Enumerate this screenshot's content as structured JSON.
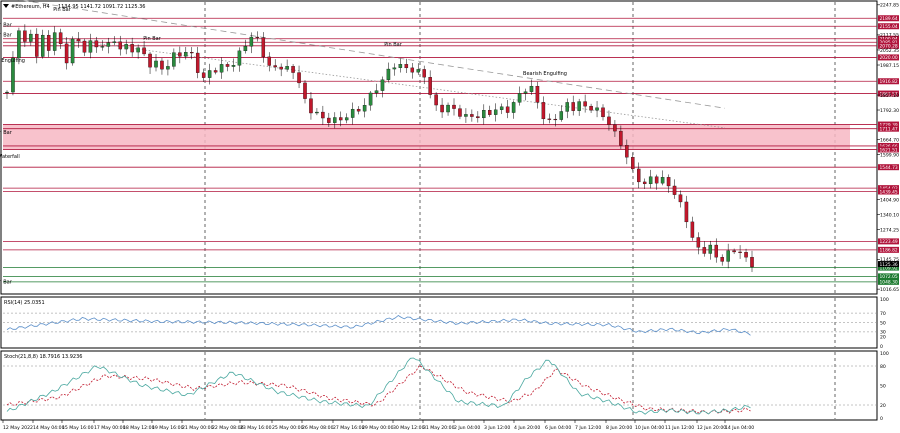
{
  "window": {
    "title": "#Ethereum, H4",
    "ohlc": "1134.95 1141.72 1091.72 1125.36",
    "menu_icon": "triangle-down-icon"
  },
  "price_axis": {
    "ticks": [
      {
        "value": 2247.85,
        "label": "2247.85"
      },
      {
        "value": 2117.55,
        "label": "2117.55"
      },
      {
        "value": 2052.35,
        "label": "2052.35"
      },
      {
        "value": 1987.15,
        "label": "1987.15"
      },
      {
        "value": 1857.1,
        "label": "1857.10"
      },
      {
        "value": 1792.3,
        "label": "1792.30"
      },
      {
        "value": 1664.7,
        "label": "1664.70"
      },
      {
        "value": 1599.9,
        "label": "1599.90"
      },
      {
        "value": 1404.9,
        "label": "1404.90"
      },
      {
        "value": 1340.1,
        "label": "1340.10"
      },
      {
        "value": 1274.25,
        "label": "1274.25"
      },
      {
        "value": 1145.75,
        "label": "1145.75"
      },
      {
        "value": 1016.65,
        "label": "1016.65"
      }
    ],
    "current_price": {
      "value": 1125.36,
      "label": "1125.36"
    }
  },
  "levels": [
    {
      "value": 2189.64,
      "label": "2189.64",
      "kind": "resistance"
    },
    {
      "value": 2155.04,
      "label": "2155.04",
      "kind": "resistance"
    },
    {
      "value": 2100.94,
      "label": "2100.94",
      "kind": "resistance"
    },
    {
      "value": 2085.81,
      "label": "2085.81",
      "kind": "resistance"
    },
    {
      "value": 2070.28,
      "label": "2070.28",
      "kind": "resistance"
    },
    {
      "value": 2020.0,
      "label": "2020.00",
      "kind": "resistance"
    },
    {
      "value": 1916.82,
      "label": "1916.82",
      "kind": "resistance"
    },
    {
      "value": 1863.57,
      "label": "1863.57",
      "kind": "resistance"
    },
    {
      "value": 1729.39,
      "label": "1729.39",
      "kind": "zone"
    },
    {
      "value": 1711.47,
      "label": "1711.47",
      "kind": "zone"
    },
    {
      "value": 1636.66,
      "label": "1636.66",
      "kind": "zone"
    },
    {
      "value": 1621.51,
      "label": "1621.51",
      "kind": "zone"
    },
    {
      "value": 1544.73,
      "label": "1544.73",
      "kind": "resistance"
    },
    {
      "value": 1454.03,
      "label": "1454.03",
      "kind": "resistance"
    },
    {
      "value": 1439.45,
      "label": "1439.45",
      "kind": "resistance"
    },
    {
      "value": 1223.49,
      "label": "1223.49",
      "kind": "resistance"
    },
    {
      "value": 1186.82,
      "label": "1186.82",
      "kind": "resistance"
    },
    {
      "value": 1109.92,
      "label": "1109.92",
      "kind": "support"
    },
    {
      "value": 1072.05,
      "label": "1072.05",
      "kind": "support"
    },
    {
      "value": 1048.3,
      "label": "1048.30",
      "kind": "support"
    }
  ],
  "zone": {
    "upper": 1729.39,
    "lower": 1621.51
  },
  "trendlines": [
    {
      "style": "dashed",
      "from": [
        "13 May 2022 00:00",
        2280
      ],
      "to": [
        "14 Jun 04:00",
        1800
      ]
    },
    {
      "style": "dotted",
      "from": [
        "15 May 16:00",
        2100
      ],
      "to": [
        "14 Jun 04:00",
        1715
      ]
    }
  ],
  "annotations": [
    {
      "text": "Pin Bar",
      "time": "12 May 2022",
      "price": 2155
    },
    {
      "text": "Pin Bar",
      "time": "15 May 16:00",
      "price": 2222
    },
    {
      "text": "Pin Bar",
      "time": "19 May 16:00",
      "price": 2095
    },
    {
      "text": "Pin Bar",
      "time": "22 May 00:00",
      "price": 2110
    },
    {
      "text": "Pin Bar",
      "time": "28 May 00:00",
      "price": 1688
    },
    {
      "text": "Pin Bar",
      "time": "30 May 12:00",
      "price": 2070
    },
    {
      "text": "Bearish Engulfing",
      "time": "31 May 16:00",
      "price": 2000
    },
    {
      "text": "Bearish Engulfing",
      "time": "6 Jun 04:00",
      "price": 1945
    },
    {
      "text": "Red Waterfall",
      "time": "11 Jun 00:00",
      "price": 1585
    },
    {
      "text": "Pin Bar",
      "time": "13 Jun 20:00",
      "price": 1042
    }
  ],
  "time_axis": {
    "labels": [
      "12 May 2022",
      "14 May 04:00",
      "15 May 16:00",
      "17 May 00:00",
      "18 May 12:00",
      "19 May 16:00",
      "21 May 00:00",
      "22 May 08:00",
      "23 May 16:00",
      "25 May 00:00",
      "26 May 08:00",
      "27 May 16:00",
      "29 May 00:00",
      "30 May 12:00",
      "31 May 20:00",
      "2 Jun 04:00",
      "3 Jun 12:00",
      "4 Jun 20:00",
      "6 Jun 04:00",
      "7 Jun 12:00",
      "8 Jun 20:00",
      "10 Jun 04:00",
      "11 Jun 12:00",
      "12 Jun 20:00",
      "14 Jun 04:00"
    ]
  },
  "rsi_panel": {
    "title": "RSI(14) 25.0351",
    "levels": [
      70,
      50,
      30
    ],
    "ticks": [
      100,
      70,
      50,
      30,
      20,
      0
    ]
  },
  "stoch_panel": {
    "title": "Stoch(21,8,8) 18.7916 13.9236",
    "levels": [
      80,
      20
    ],
    "ticks": [
      100,
      80,
      50,
      20,
      0
    ]
  },
  "colors": {
    "bull": "#2a8a3e",
    "bear": "#c0182c",
    "resistance": "#b0143b",
    "support": "#1d7a30",
    "zone_fill": "#f7b7c3",
    "rsi_line": "#5b8fc9",
    "stoch_main": "#4aa8a0",
    "stoch_signal": "#c0182c",
    "trend": "#999999",
    "grid": "#000000"
  },
  "chart_data": {
    "type": "candlestick",
    "symbol": "#Ethereum",
    "timeframe": "H4",
    "ylim": [
      1000,
      2260
    ],
    "path": [
      [
        0,
        1870
      ],
      [
        4,
        2010
      ],
      [
        8,
        2150
      ],
      [
        12,
        2080
      ],
      [
        16,
        2120
      ],
      [
        20,
        2030
      ],
      [
        24,
        2110
      ],
      [
        28,
        2050
      ],
      [
        32,
        2140
      ],
      [
        36,
        2060
      ],
      [
        40,
        2000
      ],
      [
        44,
        2110
      ],
      [
        48,
        2080
      ],
      [
        52,
        2050
      ],
      [
        56,
        2090
      ],
      [
        60,
        2060
      ],
      [
        64,
        2080
      ],
      [
        68,
        2070
      ],
      [
        72,
        2100
      ],
      [
        76,
        2050
      ],
      [
        80,
        2070
      ],
      [
        84,
        2050
      ],
      [
        88,
        2060
      ],
      [
        92,
        2020
      ],
      [
        96,
        1980
      ],
      [
        100,
        2000
      ],
      [
        104,
        1960
      ],
      [
        108,
        2000
      ],
      [
        112,
        2040
      ],
      [
        116,
        2030
      ],
      [
        120,
        2050
      ],
      [
        124,
        2020
      ],
      [
        128,
        1940
      ],
      [
        132,
        1920
      ],
      [
        136,
        1980
      ],
      [
        140,
        1960
      ],
      [
        144,
        1990
      ],
      [
        148,
        1980
      ],
      [
        152,
        2000
      ],
      [
        156,
        2060
      ],
      [
        160,
        2090
      ],
      [
        164,
        2120
      ],
      [
        168,
        2080
      ],
      [
        172,
        2000
      ],
      [
        176,
        1960
      ],
      [
        180,
        1990
      ],
      [
        184,
        1970
      ],
      [
        188,
        1970
      ],
      [
        192,
        1950
      ],
      [
        196,
        1880
      ],
      [
        200,
        1780
      ],
      [
        204,
        1800
      ],
      [
        208,
        1760
      ],
      [
        212,
        1740
      ],
      [
        216,
        1760
      ],
      [
        220,
        1740
      ],
      [
        224,
        1760
      ],
      [
        228,
        1780
      ],
      [
        232,
        1790
      ],
      [
        236,
        1800
      ],
      [
        240,
        1840
      ],
      [
        244,
        1880
      ],
      [
        248,
        1900
      ],
      [
        252,
        1950
      ],
      [
        256,
        1990
      ],
      [
        260,
        1980
      ],
      [
        264,
        1980
      ],
      [
        268,
        1970
      ],
      [
        272,
        1950
      ],
      [
        276,
        1970
      ],
      [
        280,
        1880
      ],
      [
        284,
        1810
      ],
      [
        288,
        1790
      ],
      [
        292,
        1810
      ],
      [
        296,
        1800
      ],
      [
        300,
        1780
      ],
      [
        304,
        1760
      ],
      [
        308,
        1770
      ],
      [
        312,
        1760
      ],
      [
        316,
        1780
      ],
      [
        320,
        1780
      ],
      [
        324,
        1790
      ],
      [
        328,
        1800
      ],
      [
        332,
        1790
      ],
      [
        336,
        1810
      ],
      [
        340,
        1860
      ],
      [
        344,
        1880
      ],
      [
        348,
        1890
      ],
      [
        352,
        1840
      ],
      [
        356,
        1760
      ],
      [
        360,
        1740
      ],
      [
        364,
        1760
      ],
      [
        368,
        1780
      ],
      [
        372,
        1820
      ],
      [
        376,
        1800
      ],
      [
        380,
        1820
      ],
      [
        384,
        1810
      ],
      [
        388,
        1800
      ],
      [
        392,
        1790
      ],
      [
        396,
        1770
      ],
      [
        400,
        1730
      ],
      [
        404,
        1690
      ],
      [
        408,
        1650
      ],
      [
        412,
        1580
      ],
      [
        416,
        1530
      ],
      [
        420,
        1490
      ],
      [
        424,
        1460
      ],
      [
        428,
        1510
      ],
      [
        432,
        1480
      ],
      [
        436,
        1490
      ],
      [
        440,
        1470
      ],
      [
        444,
        1420
      ],
      [
        448,
        1380
      ],
      [
        452,
        1310
      ],
      [
        456,
        1220
      ],
      [
        460,
        1190
      ],
      [
        464,
        1180
      ],
      [
        468,
        1200
      ],
      [
        472,
        1150
      ],
      [
        476,
        1140
      ],
      [
        480,
        1180
      ],
      [
        484,
        1190
      ],
      [
        488,
        1170
      ],
      [
        492,
        1140
      ],
      [
        495,
        1125
      ]
    ],
    "rsi": [
      [
        0,
        35
      ],
      [
        50,
        58
      ],
      [
        100,
        52
      ],
      [
        150,
        50
      ],
      [
        200,
        45
      ],
      [
        230,
        40
      ],
      [
        260,
        62
      ],
      [
        300,
        48
      ],
      [
        340,
        56
      ],
      [
        360,
        48
      ],
      [
        400,
        45
      ],
      [
        420,
        30
      ],
      [
        440,
        36
      ],
      [
        460,
        28
      ],
      [
        480,
        36
      ],
      [
        495,
        25
      ]
    ],
    "stoch_main": [
      [
        0,
        10
      ],
      [
        30,
        40
      ],
      [
        60,
        80
      ],
      [
        90,
        50
      ],
      [
        120,
        35
      ],
      [
        150,
        70
      ],
      [
        180,
        40
      ],
      [
        210,
        25
      ],
      [
        240,
        18
      ],
      [
        270,
        95
      ],
      [
        300,
        25
      ],
      [
        330,
        18
      ],
      [
        345,
        60
      ],
      [
        360,
        90
      ],
      [
        380,
        38
      ],
      [
        400,
        25
      ],
      [
        420,
        8
      ],
      [
        440,
        12
      ],
      [
        460,
        8
      ],
      [
        480,
        12
      ],
      [
        495,
        19
      ]
    ],
    "stoch_signal": [
      [
        0,
        20
      ],
      [
        35,
        32
      ],
      [
        65,
        65
      ],
      [
        95,
        60
      ],
      [
        125,
        45
      ],
      [
        155,
        55
      ],
      [
        185,
        50
      ],
      [
        215,
        30
      ],
      [
        245,
        20
      ],
      [
        275,
        80
      ],
      [
        305,
        40
      ],
      [
        335,
        25
      ],
      [
        350,
        40
      ],
      [
        365,
        75
      ],
      [
        385,
        48
      ],
      [
        405,
        30
      ],
      [
        425,
        14
      ],
      [
        445,
        12
      ],
      [
        465,
        9
      ],
      [
        485,
        11
      ],
      [
        495,
        14
      ]
    ]
  }
}
